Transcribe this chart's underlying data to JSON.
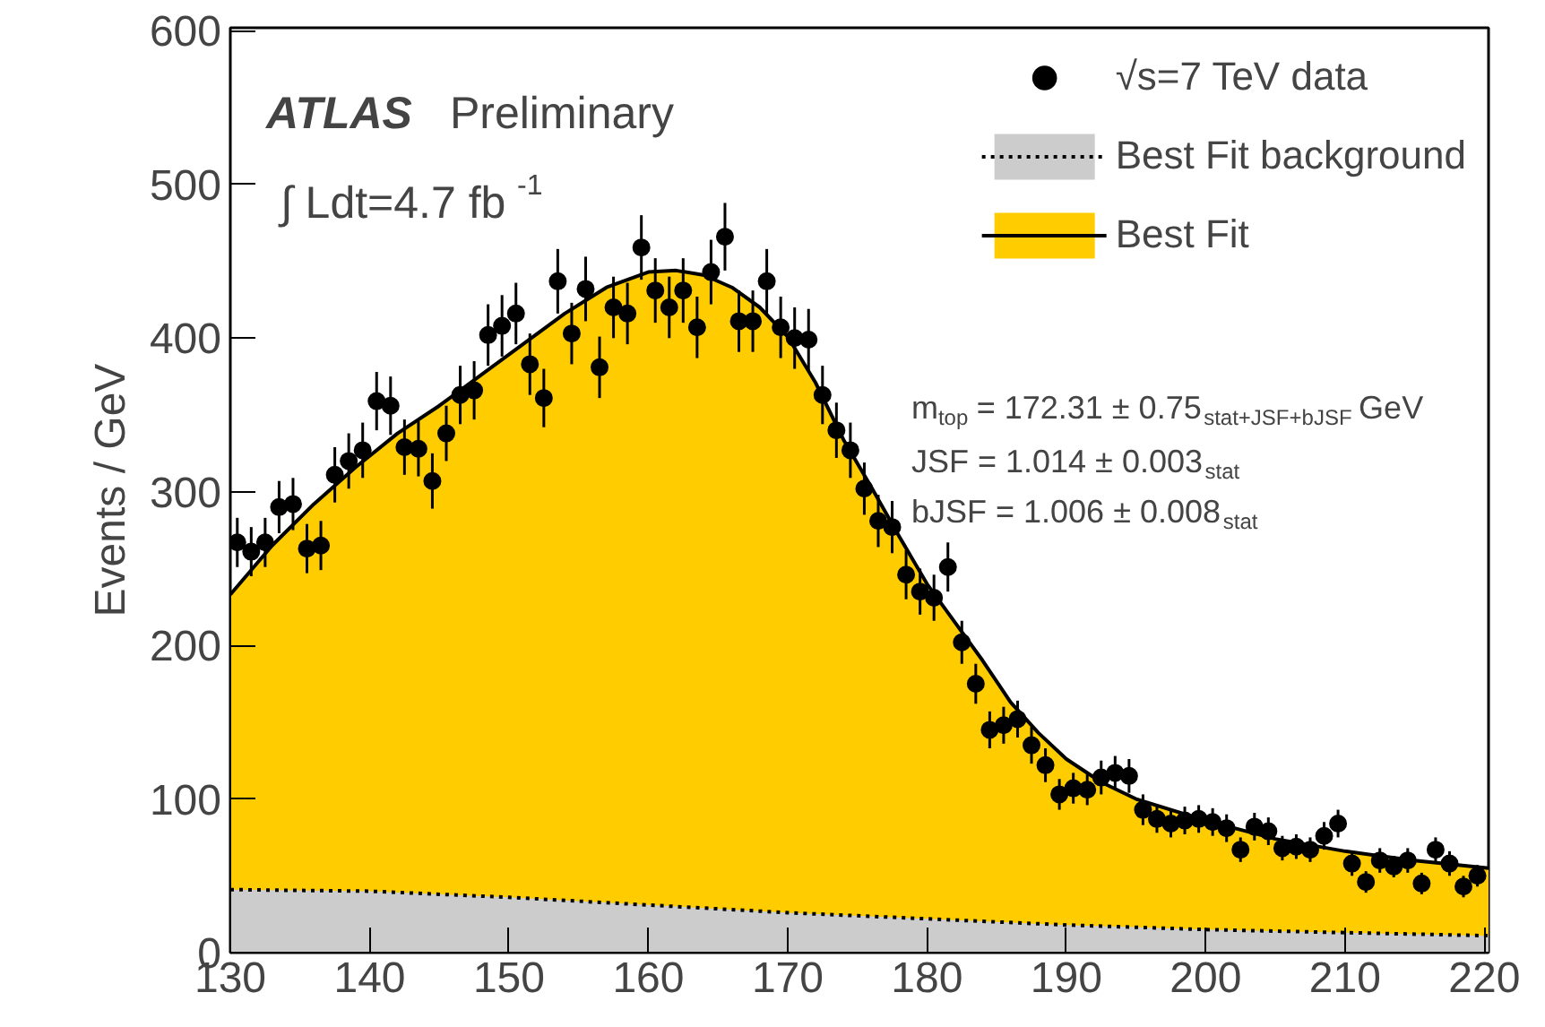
{
  "chart_data": {
    "type": "scatter",
    "ylabel": "Events / GeV",
    "xlim": [
      130,
      220.3
    ],
    "ylim": [
      0,
      602
    ],
    "xticks": [
      130,
      140,
      150,
      160,
      170,
      180,
      190,
      200,
      210,
      220
    ],
    "yticks": [
      0,
      100,
      200,
      300,
      400,
      500,
      600
    ],
    "grid": false,
    "legend": "top right",
    "annotations": [
      "ATLAS Preliminary",
      "∫ Ldt=4.7 fb$^{-1}$",
      "m$_{top}$ = 172.31 ± 0.75$_{stat+JSF+bJSF}$ GeV",
      "JSF = 1.014 ± 0.003$_{stat}$",
      "bJSF = 1.006 ± 0.008$_{stat}$"
    ],
    "series": [
      {
        "name": "Best Fit",
        "type": "area",
        "color": "#ffcc00",
        "line_style": "solid",
        "x": [
          130,
          133,
          136,
          139,
          142,
          145,
          148,
          151,
          154,
          157,
          160,
          162,
          164,
          166,
          168,
          170,
          172,
          174,
          176,
          178,
          180,
          182,
          184,
          186,
          188,
          190,
          192.5,
          195,
          200,
          205,
          210,
          215,
          220.3
        ],
        "values": [
          233,
          265,
          292,
          316,
          338,
          356,
          376,
          396,
          416,
          433,
          443,
          444,
          441,
          433,
          420,
          401,
          371,
          334,
          303,
          271,
          240,
          215,
          190,
          163,
          143,
          126,
          111,
          100,
          86,
          74,
          66,
          60,
          55
        ]
      },
      {
        "name": "Best Fit background",
        "type": "area",
        "color": "#cccccc",
        "line_style": "dotted",
        "x": [
          130,
          140,
          150,
          160,
          170,
          180,
          190,
          200,
          210,
          220.3
        ],
        "values": [
          41,
          40,
          36,
          31,
          26,
          22,
          18,
          15,
          13,
          11
        ]
      },
      {
        "name": "√s=7 TeV data",
        "color": "#000000",
        "marker": "circle",
        "x": [
          130.5,
          131.5,
          132.5,
          133.5,
          134.5,
          135.5,
          136.5,
          137.5,
          138.5,
          139.5,
          140.5,
          141.5,
          142.5,
          143.5,
          144.5,
          145.5,
          146.5,
          147.5,
          148.5,
          149.5,
          150.5,
          151.5,
          152.5,
          153.5,
          154.5,
          155.5,
          156.5,
          157.5,
          158.5,
          159.5,
          160.5,
          161.5,
          162.5,
          163.5,
          164.5,
          165.5,
          166.5,
          167.5,
          168.5,
          169.5,
          170.5,
          171.5,
          172.5,
          173.5,
          174.5,
          175.5,
          176.5,
          177.5,
          178.5,
          179.5,
          180.5,
          181.5,
          182.5,
          183.5,
          184.5,
          185.5,
          186.5,
          187.5,
          188.5,
          189.5,
          190.5,
          191.5,
          192.5,
          193.5,
          194.5,
          195.5,
          196.5,
          197.5,
          198.5,
          199.5,
          200.5,
          201.5,
          202.5,
          203.5,
          204.5,
          205.5,
          206.5,
          207.5,
          208.5,
          209.5,
          210.5,
          211.5,
          212.5,
          213.5,
          214.5,
          215.5,
          216.5,
          217.5,
          218.5,
          219.5
        ],
        "values": [
          267,
          261,
          267,
          290,
          292,
          263,
          265,
          311,
          320,
          327,
          359,
          356,
          329,
          328,
          307,
          338,
          363,
          366,
          402,
          408,
          416,
          383,
          361,
          437,
          403,
          432,
          381,
          420,
          416,
          459,
          431,
          420,
          431,
          407,
          443,
          466,
          411,
          411,
          437,
          407,
          400,
          399,
          363,
          340,
          327,
          302,
          281,
          277,
          246,
          235,
          231,
          251,
          202,
          175,
          145,
          148,
          152,
          135,
          122,
          103,
          107,
          106,
          114,
          117,
          115,
          93,
          87,
          84,
          86,
          87,
          85,
          81,
          67,
          82,
          79,
          68,
          69,
          67,
          76,
          84,
          58,
          46,
          60,
          56,
          60,
          45,
          67,
          58,
          43,
          50
        ],
        "errors": [
          16,
          16,
          16,
          17,
          17,
          16,
          16,
          18,
          18,
          18,
          19,
          19,
          18,
          18,
          18,
          18,
          19,
          19,
          20,
          20,
          20,
          20,
          19,
          21,
          20,
          21,
          20,
          20,
          20,
          21,
          21,
          20,
          21,
          20,
          21,
          22,
          20,
          20,
          21,
          20,
          20,
          20,
          19,
          18,
          18,
          17,
          17,
          17,
          16,
          15,
          15,
          16,
          14,
          13,
          12,
          12,
          12,
          12,
          11,
          10,
          10,
          10,
          11,
          11,
          11,
          10,
          9,
          9,
          9,
          9,
          9,
          9,
          8,
          9,
          9,
          8,
          8,
          8,
          9,
          9,
          8,
          7,
          8,
          7,
          8,
          7,
          8,
          8,
          7,
          7
        ]
      }
    ]
  }
}
